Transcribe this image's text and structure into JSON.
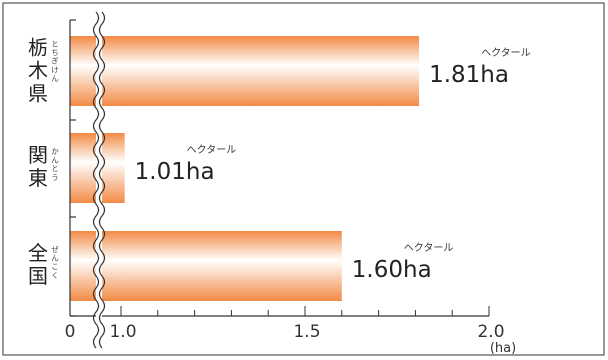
{
  "chart_data": {
    "type": "bar",
    "orientation": "horizontal",
    "categories": [
      {
        "label": "栃木県",
        "ruby": "とちぎけん"
      },
      {
        "label": "関東",
        "ruby": "かんとう"
      },
      {
        "label": "全国",
        "ruby": "ぜんこく"
      }
    ],
    "values": [
      1.81,
      1.01,
      1.6
    ],
    "value_labels": [
      "1.81ha",
      "1.01ha",
      "1.60ha"
    ],
    "value_ruby": "ヘクタール",
    "x_ticks": [
      "0",
      "1.0",
      "1.5",
      "2.0"
    ],
    "x_unit": "(ha)",
    "x_axis_break": true,
    "xlim": [
      0,
      2.0
    ],
    "grid": false,
    "bar_color": "#f28a45"
  }
}
